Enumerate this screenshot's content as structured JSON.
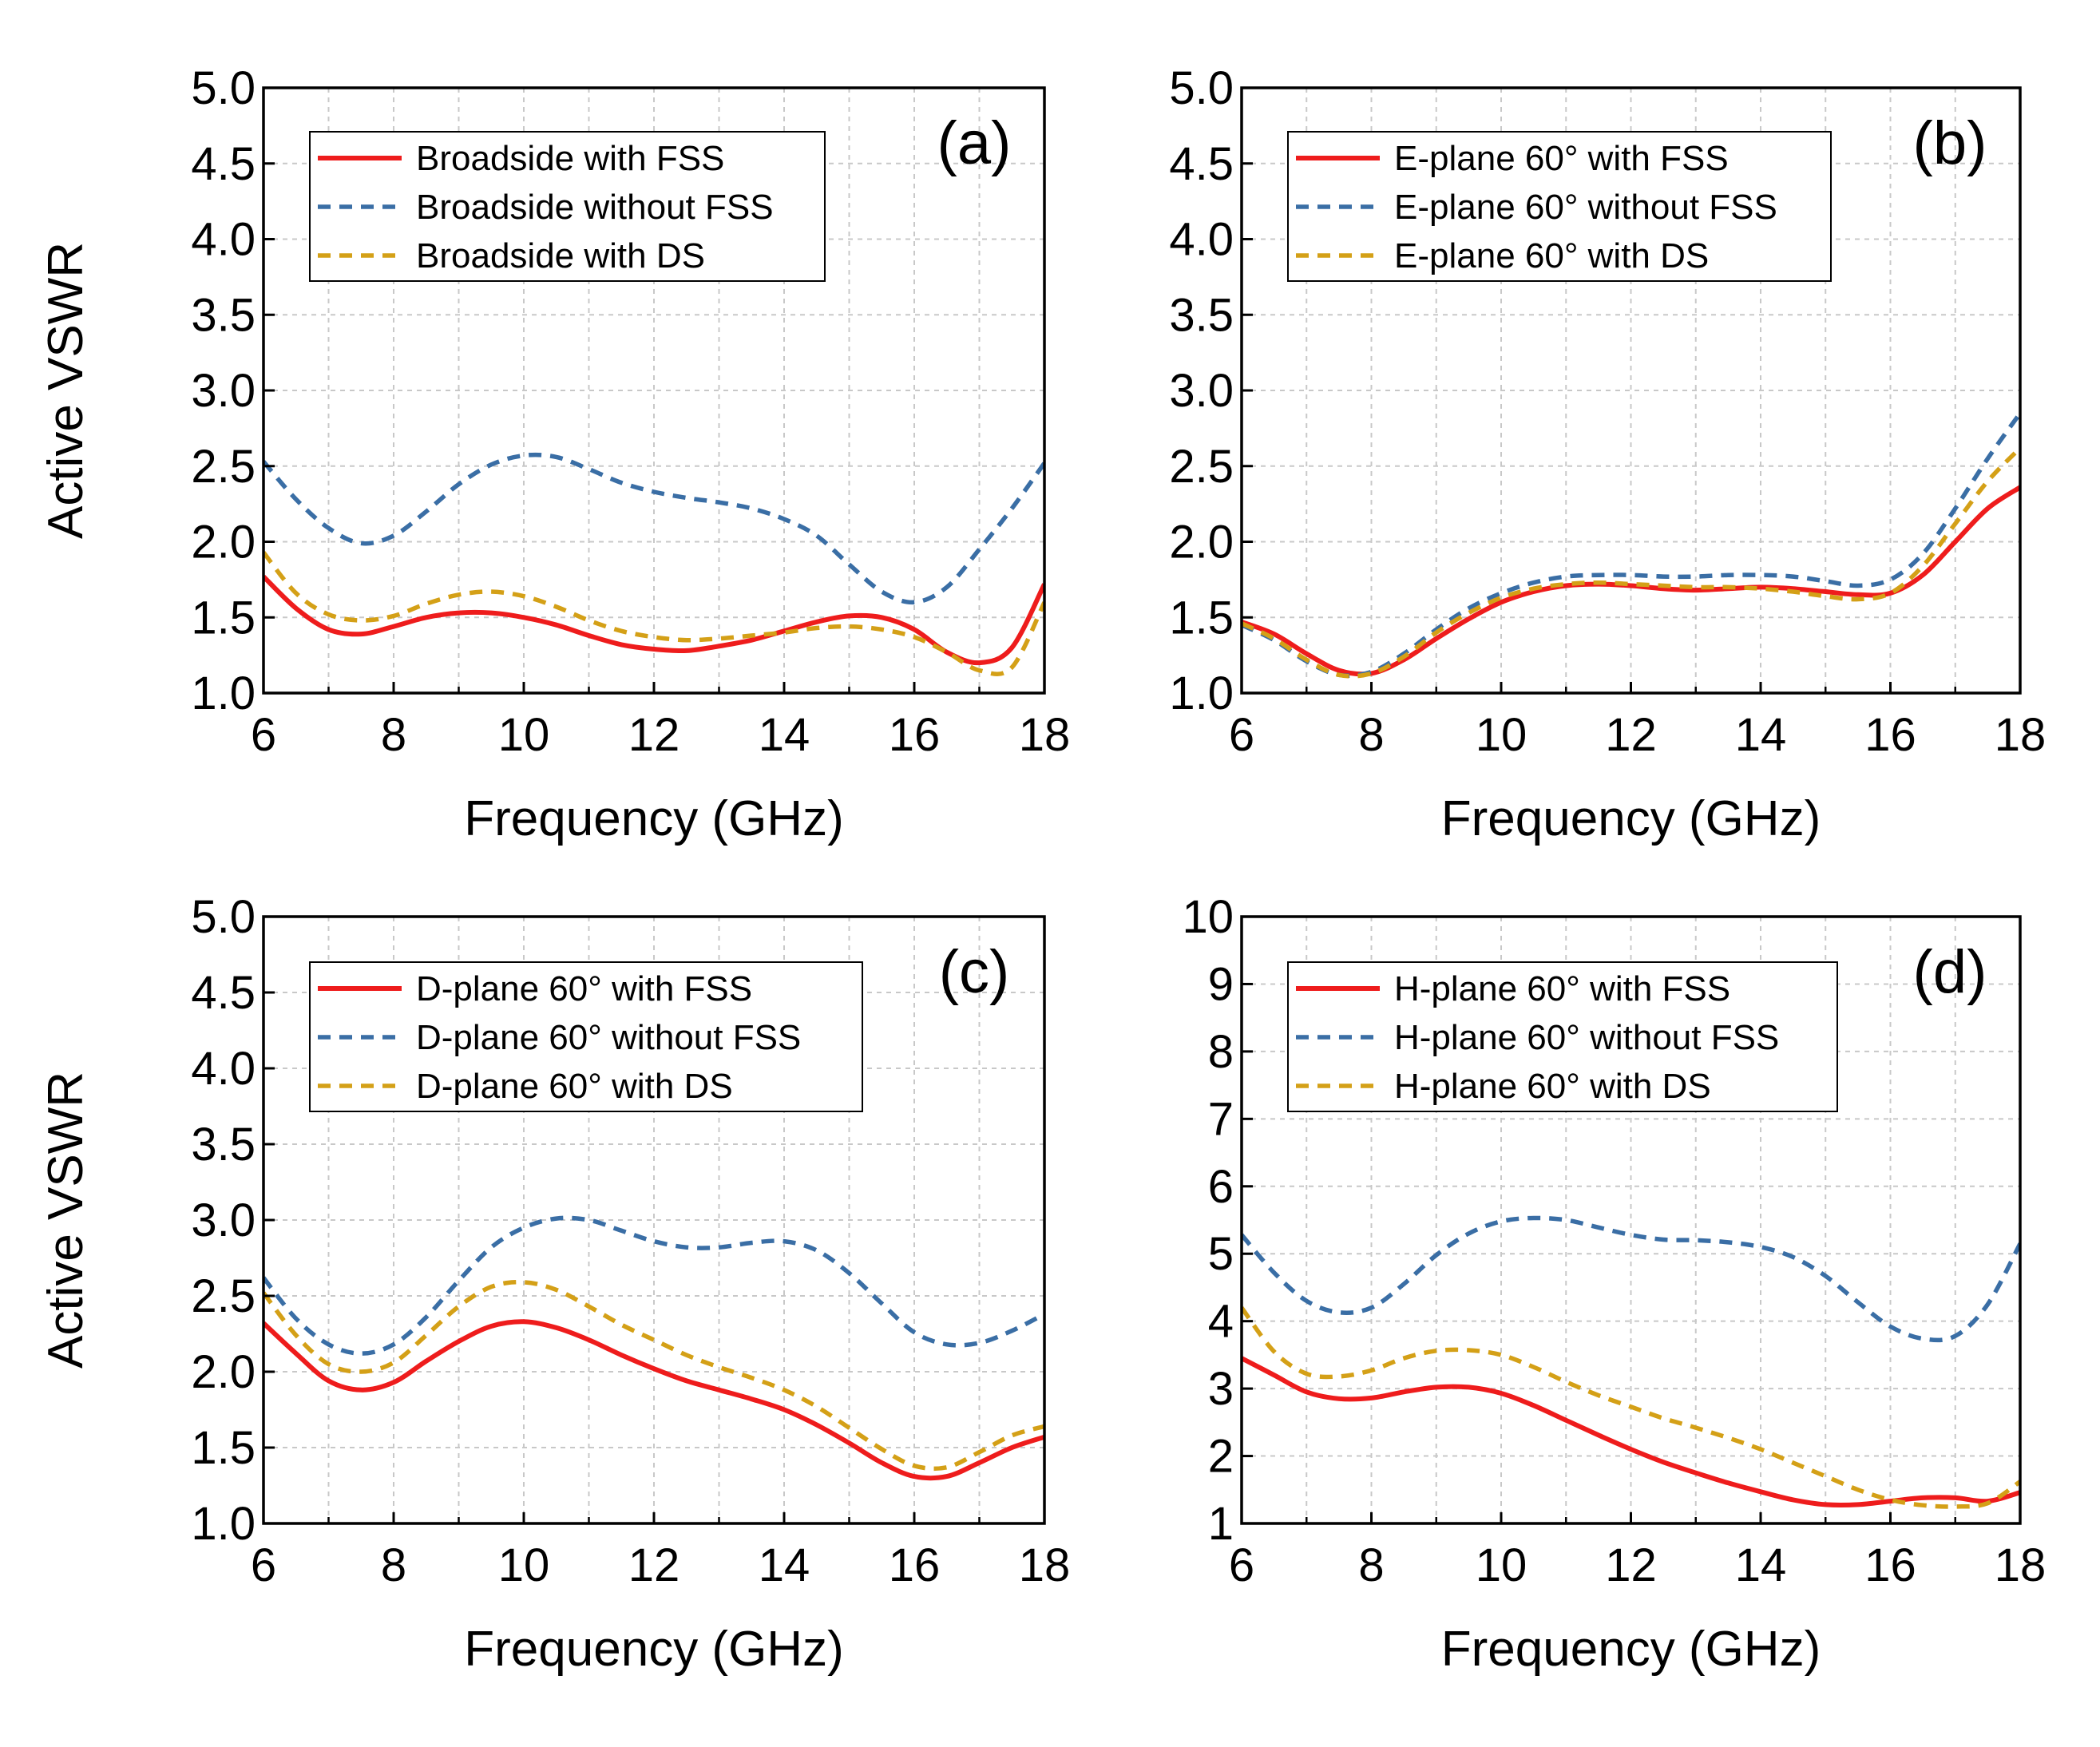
{
  "figure": {
    "colors": {
      "with_fss": "#ee1c1c",
      "without_fss": "#3a6ea5",
      "with_ds": "#d4a017",
      "grid": "#c8c8c8"
    }
  },
  "chart_data": [
    {
      "panel": "(a)",
      "type": "line",
      "xlabel": "Frequency (GHz)",
      "ylabel": "Active VSWR",
      "xlim": [
        6,
        18
      ],
      "ylim": [
        1.0,
        5.0
      ],
      "xticks": [
        "6",
        "8",
        "10",
        "12",
        "14",
        "16",
        "18"
      ],
      "yticks": [
        "1.0",
        "1.5",
        "2.0",
        "2.5",
        "3.0",
        "3.5",
        "4.0",
        "4.5",
        "5.0"
      ],
      "grid": true,
      "legend_position": "top-left",
      "series": [
        {
          "name": "Broadside with FSS",
          "style": "solid",
          "color": "#ee1c1c",
          "x": [
            6,
            6.5,
            7,
            7.5,
            8,
            8.5,
            9,
            9.5,
            10,
            10.5,
            11,
            11.5,
            12,
            12.5,
            13,
            13.5,
            14,
            14.5,
            15,
            15.5,
            16,
            16.5,
            17,
            17.5,
            18
          ],
          "y": [
            1.77,
            1.56,
            1.42,
            1.39,
            1.44,
            1.5,
            1.53,
            1.53,
            1.5,
            1.45,
            1.38,
            1.32,
            1.29,
            1.28,
            1.31,
            1.35,
            1.41,
            1.47,
            1.51,
            1.5,
            1.42,
            1.27,
            1.2,
            1.3,
            1.72
          ]
        },
        {
          "name": "Broadside without FSS",
          "style": "dashed",
          "color": "#3a6ea5",
          "x": [
            6,
            6.5,
            7,
            7.5,
            8,
            8.5,
            9,
            9.5,
            10,
            10.5,
            11,
            11.5,
            12,
            12.5,
            13,
            13.5,
            14,
            14.5,
            15,
            15.5,
            16,
            16.5,
            17,
            17.5,
            18
          ],
          "y": [
            2.53,
            2.28,
            2.09,
            1.99,
            2.04,
            2.2,
            2.38,
            2.51,
            2.57,
            2.56,
            2.48,
            2.39,
            2.33,
            2.29,
            2.26,
            2.22,
            2.15,
            2.04,
            1.85,
            1.67,
            1.6,
            1.7,
            1.95,
            2.22,
            2.52
          ]
        },
        {
          "name": "Broadside with DS",
          "style": "dashed",
          "color": "#d4a017",
          "x": [
            6,
            6.5,
            7,
            7.5,
            8,
            8.5,
            9,
            9.5,
            10,
            10.5,
            11,
            11.5,
            12,
            12.5,
            13,
            13.5,
            14,
            14.5,
            15,
            15.5,
            16,
            16.5,
            17,
            17.5,
            18
          ],
          "y": [
            1.93,
            1.66,
            1.52,
            1.48,
            1.51,
            1.59,
            1.65,
            1.67,
            1.64,
            1.57,
            1.48,
            1.41,
            1.37,
            1.35,
            1.36,
            1.38,
            1.4,
            1.43,
            1.44,
            1.42,
            1.37,
            1.27,
            1.15,
            1.17,
            1.6
          ]
        }
      ]
    },
    {
      "panel": "(b)",
      "type": "line",
      "xlabel": "Frequency (GHz)",
      "ylabel": "",
      "xlim": [
        6,
        18
      ],
      "ylim": [
        1.0,
        5.0
      ],
      "xticks": [
        "6",
        "8",
        "10",
        "12",
        "14",
        "16",
        "18"
      ],
      "yticks": [
        "1.0",
        "1.5",
        "2.0",
        "2.5",
        "3.0",
        "3.5",
        "4.0",
        "4.5",
        "5.0"
      ],
      "grid": true,
      "legend_position": "top-left",
      "series": [
        {
          "name": "E-plane 60° with FSS",
          "style": "solid",
          "color": "#ee1c1c",
          "x": [
            6,
            6.5,
            7,
            7.5,
            8,
            8.5,
            9,
            9.5,
            10,
            10.5,
            11,
            11.5,
            12,
            12.5,
            13,
            13.5,
            14,
            14.5,
            15,
            15.5,
            16,
            16.5,
            17,
            17.5,
            18
          ],
          "y": [
            1.47,
            1.39,
            1.26,
            1.15,
            1.13,
            1.22,
            1.36,
            1.49,
            1.6,
            1.67,
            1.71,
            1.72,
            1.71,
            1.69,
            1.68,
            1.69,
            1.7,
            1.69,
            1.67,
            1.65,
            1.66,
            1.78,
            2.0,
            2.22,
            2.36
          ]
        },
        {
          "name": "E-plane 60° without FSS",
          "style": "dashed",
          "color": "#3a6ea5",
          "x": [
            6,
            6.5,
            7,
            7.5,
            8,
            8.5,
            9,
            9.5,
            10,
            10.5,
            11,
            11.5,
            12,
            12.5,
            13,
            13.5,
            14,
            14.5,
            15,
            15.5,
            16,
            16.5,
            17,
            17.5,
            18
          ],
          "y": [
            1.45,
            1.35,
            1.21,
            1.12,
            1.14,
            1.26,
            1.42,
            1.56,
            1.66,
            1.73,
            1.77,
            1.78,
            1.78,
            1.77,
            1.77,
            1.78,
            1.78,
            1.77,
            1.74,
            1.71,
            1.75,
            1.92,
            2.22,
            2.55,
            2.85
          ]
        },
        {
          "name": "E-plane 60° with DS",
          "style": "dashed",
          "color": "#d4a017",
          "x": [
            6,
            6.5,
            7,
            7.5,
            8,
            8.5,
            9,
            9.5,
            10,
            10.5,
            11,
            11.5,
            12,
            12.5,
            13,
            13.5,
            14,
            14.5,
            15,
            15.5,
            16,
            16.5,
            17,
            17.5,
            18
          ],
          "y": [
            1.46,
            1.36,
            1.22,
            1.12,
            1.13,
            1.24,
            1.4,
            1.53,
            1.63,
            1.69,
            1.72,
            1.73,
            1.72,
            1.71,
            1.7,
            1.7,
            1.69,
            1.67,
            1.64,
            1.62,
            1.66,
            1.84,
            2.12,
            2.4,
            2.62
          ]
        }
      ]
    },
    {
      "panel": "(c)",
      "type": "line",
      "xlabel": "Frequency (GHz)",
      "ylabel": "Active VSWR",
      "xlim": [
        6,
        18
      ],
      "ylim": [
        1.0,
        5.0
      ],
      "xticks": [
        "6",
        "8",
        "10",
        "12",
        "14",
        "16",
        "18"
      ],
      "yticks": [
        "1.0",
        "1.5",
        "2.0",
        "2.5",
        "3.0",
        "3.5",
        "4.0",
        "4.5",
        "5.0"
      ],
      "grid": true,
      "legend_position": "top-left",
      "series": [
        {
          "name": "D-plane 60° with FSS",
          "style": "solid",
          "color": "#ee1c1c",
          "x": [
            6,
            6.5,
            7,
            7.5,
            8,
            8.5,
            9,
            9.5,
            10,
            10.5,
            11,
            11.5,
            12,
            12.5,
            13,
            13.5,
            14,
            14.5,
            15,
            15.5,
            16,
            16.5,
            17,
            17.5,
            18
          ],
          "y": [
            2.32,
            2.12,
            1.94,
            1.88,
            1.93,
            2.07,
            2.2,
            2.3,
            2.33,
            2.29,
            2.21,
            2.11,
            2.02,
            1.94,
            1.88,
            1.82,
            1.75,
            1.65,
            1.53,
            1.4,
            1.31,
            1.31,
            1.4,
            1.5,
            1.57
          ]
        },
        {
          "name": "D-plane 60° without FSS",
          "style": "dashed",
          "color": "#3a6ea5",
          "x": [
            6,
            6.5,
            7,
            7.5,
            8,
            8.5,
            9,
            9.5,
            10,
            10.5,
            11,
            11.5,
            12,
            12.5,
            13,
            13.5,
            14,
            14.5,
            15,
            15.5,
            16,
            16.5,
            17,
            17.5,
            18
          ],
          "y": [
            2.62,
            2.35,
            2.18,
            2.12,
            2.18,
            2.36,
            2.6,
            2.82,
            2.95,
            3.01,
            3.0,
            2.93,
            2.86,
            2.82,
            2.82,
            2.85,
            2.86,
            2.8,
            2.65,
            2.45,
            2.26,
            2.18,
            2.19,
            2.27,
            2.38
          ]
        },
        {
          "name": "D-plane 60° with DS",
          "style": "dashed",
          "color": "#d4a017",
          "x": [
            6,
            6.5,
            7,
            7.5,
            8,
            8.5,
            9,
            9.5,
            10,
            10.5,
            11,
            11.5,
            12,
            12.5,
            13,
            13.5,
            14,
            14.5,
            15,
            15.5,
            16,
            16.5,
            17,
            17.5,
            18
          ],
          "y": [
            2.52,
            2.24,
            2.05,
            2.0,
            2.06,
            2.24,
            2.43,
            2.56,
            2.59,
            2.54,
            2.43,
            2.31,
            2.21,
            2.11,
            2.03,
            1.96,
            1.88,
            1.77,
            1.63,
            1.49,
            1.38,
            1.37,
            1.47,
            1.58,
            1.64
          ]
        }
      ]
    },
    {
      "panel": "(d)",
      "type": "line",
      "xlabel": "Frequency (GHz)",
      "ylabel": "",
      "xlim": [
        6,
        18
      ],
      "ylim": [
        1,
        10
      ],
      "xticks": [
        "6",
        "8",
        "10",
        "12",
        "14",
        "16",
        "18"
      ],
      "yticks": [
        "1",
        "2",
        "3",
        "4",
        "5",
        "6",
        "7",
        "8",
        "9",
        "10"
      ],
      "grid": true,
      "legend_position": "top-left",
      "series": [
        {
          "name": "H-plane 60° with FSS",
          "style": "solid",
          "color": "#ee1c1c",
          "x": [
            6,
            6.5,
            7,
            7.5,
            8,
            8.5,
            9,
            9.5,
            10,
            10.5,
            11,
            11.5,
            12,
            12.5,
            13,
            13.5,
            14,
            14.5,
            15,
            15.5,
            16,
            16.5,
            17,
            17.5,
            18
          ],
          "y": [
            3.45,
            3.2,
            2.95,
            2.85,
            2.86,
            2.95,
            3.02,
            3.02,
            2.93,
            2.75,
            2.53,
            2.31,
            2.1,
            1.91,
            1.75,
            1.6,
            1.47,
            1.35,
            1.28,
            1.28,
            1.33,
            1.38,
            1.38,
            1.33,
            1.46
          ]
        },
        {
          "name": "H-plane 60° without FSS",
          "style": "dashed",
          "color": "#3a6ea5",
          "x": [
            6,
            6.5,
            7,
            7.5,
            8,
            8.5,
            9,
            9.5,
            10,
            10.5,
            11,
            11.5,
            12,
            12.5,
            13,
            13.5,
            14,
            14.5,
            15,
            15.5,
            16,
            16.5,
            17,
            17.5,
            18
          ],
          "y": [
            5.28,
            4.72,
            4.3,
            4.13,
            4.2,
            4.55,
            4.98,
            5.3,
            5.48,
            5.53,
            5.5,
            5.39,
            5.28,
            5.21,
            5.2,
            5.17,
            5.1,
            4.95,
            4.67,
            4.28,
            3.92,
            3.74,
            3.78,
            4.25,
            5.15
          ]
        },
        {
          "name": "H-plane 60° with DS",
          "style": "dashed",
          "color": "#d4a017",
          "x": [
            6,
            6.5,
            7,
            7.5,
            8,
            8.5,
            9,
            9.5,
            10,
            10.5,
            11,
            11.5,
            12,
            12.5,
            13,
            13.5,
            14,
            14.5,
            15,
            15.5,
            16,
            16.5,
            17,
            17.5,
            18
          ],
          "y": [
            4.2,
            3.55,
            3.22,
            3.18,
            3.27,
            3.45,
            3.56,
            3.57,
            3.5,
            3.32,
            3.1,
            2.9,
            2.73,
            2.56,
            2.42,
            2.27,
            2.1,
            1.9,
            1.7,
            1.5,
            1.35,
            1.27,
            1.25,
            1.3,
            1.62
          ]
        }
      ]
    }
  ]
}
